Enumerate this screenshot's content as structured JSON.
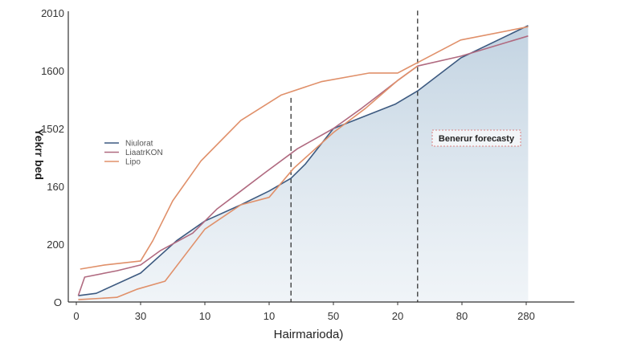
{
  "chart_data": {
    "type": "line",
    "title": "",
    "xlabel": "Hairmarioda)",
    "ylabel": "Yekrr bed",
    "x_tick_labels": [
      "0",
      "30",
      "10",
      "10",
      "50",
      "20",
      "80",
      "280"
    ],
    "y_tick_labels": [
      "O",
      "200",
      "160",
      "1502",
      "1600",
      "2010"
    ],
    "axis_note": "Axes are ordinal; values are expressed in tick-index units (x: 0-7, y: 0-5)",
    "xlim": [
      -0.13,
      7.75
    ],
    "ylim": [
      0,
      5
    ],
    "grid": false,
    "legend_position": "left",
    "annotation": "Benerur forecasty",
    "forecast_markers_x": [
      3.34,
      5.31
    ],
    "series": [
      {
        "name": "Niulorat",
        "color": "#3d5a80",
        "area": true,
        "x": [
          0.03,
          0.31,
          1,
          1.56,
          2,
          2.56,
          3,
          3.34,
          3.56,
          4,
          4.5,
          4.96,
          5.31,
          5.98,
          7.03
        ],
        "y": [
          0.11,
          0.15,
          0.5,
          1.06,
          1.4,
          1.68,
          1.92,
          2.14,
          2.38,
          3,
          3.22,
          3.42,
          3.65,
          4.22,
          4.78
        ]
      },
      {
        "name": "LiaatrKON",
        "color": "#b06a80",
        "x": [
          0.03,
          0.13,
          0.63,
          1,
          1.31,
          1.81,
          2.19,
          2.56,
          2.94,
          3.44,
          4,
          4.44,
          5,
          5.31,
          5.98,
          7.03
        ],
        "y": [
          0.11,
          0.43,
          0.54,
          0.64,
          0.89,
          1.19,
          1.61,
          1.92,
          2.24,
          2.65,
          3,
          3.35,
          3.83,
          4.08,
          4.25,
          4.6
        ]
      },
      {
        "name": "Lipo",
        "color": "#e0906a",
        "x": [
          0.06,
          0.44,
          1,
          1.19,
          1.5,
          1.94,
          2.56,
          3.19,
          3.81,
          4.56,
          5,
          5.31,
          5.98,
          7.03
        ],
        "y": [
          0.57,
          0.64,
          0.71,
          1.06,
          1.75,
          2.44,
          3.14,
          3.58,
          3.81,
          3.96,
          3.96,
          4.14,
          4.53,
          4.76
        ]
      },
      {
        "name": "Lipo",
        "color": "#e0906a",
        "legend": false,
        "x": [
          0.03,
          0.63,
          0.94,
          1.38,
          1.69,
          2,
          2.56,
          3,
          3.38,
          4,
          4.5,
          5,
          5.31
        ],
        "y": [
          0.04,
          0.08,
          0.22,
          0.36,
          0.81,
          1.26,
          1.68,
          1.81,
          2.31,
          2.93,
          3.35,
          3.83,
          4.08
        ]
      }
    ]
  }
}
